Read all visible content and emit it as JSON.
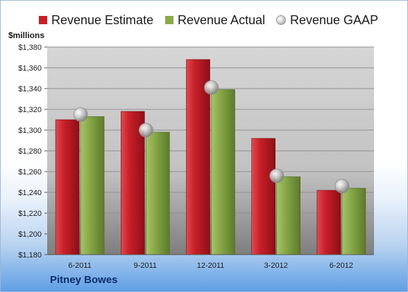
{
  "legend": {
    "estimate": "Revenue Estimate",
    "actual": "Revenue Actual",
    "gaap": "Revenue GAAP"
  },
  "units_label": "$millions",
  "company": "Pitney Bowes",
  "colors": {
    "estimate": "#c8202a",
    "actual": "#8aaa4a",
    "gaap": "#b8b8b8"
  },
  "chart_data": {
    "type": "bar",
    "categories": [
      "6-2011",
      "9-2011",
      "12-2011",
      "3-2012",
      "6-2012"
    ],
    "series": [
      {
        "name": "Revenue Estimate",
        "values": [
          1310,
          1318,
          1368,
          1292,
          1242
        ]
      },
      {
        "name": "Revenue Actual",
        "values": [
          1313,
          1298,
          1339,
          1255,
          1244
        ]
      },
      {
        "name": "Revenue GAAP",
        "values": [
          1315,
          1300,
          1341,
          1256,
          1246
        ],
        "style": "bubble"
      }
    ],
    "ylabel": "$millions",
    "ylim": [
      1180,
      1380
    ],
    "yticks": [
      "$1,180",
      "$1,200",
      "$1,220",
      "$1,240",
      "$1,260",
      "$1,280",
      "$1,300",
      "$1,320",
      "$1,340",
      "$1,360",
      "$1,380"
    ],
    "grid": true,
    "legend_position": "top"
  }
}
